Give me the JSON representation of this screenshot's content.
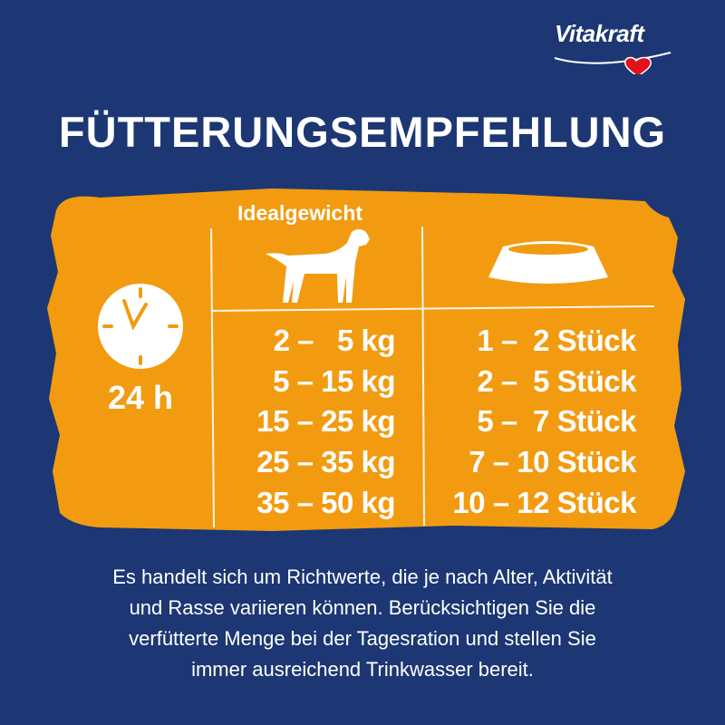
{
  "brand": {
    "logo_text": "Vitakraft",
    "colors": {
      "background": "#1c3773",
      "panel": "#f29b10",
      "heart": "#e3101e"
    }
  },
  "title": "FÜTTERUNGSEMPFEHLUNG",
  "time": {
    "icon": "clock-icon",
    "label": "24 h"
  },
  "table": {
    "weight_header": "Idealgewicht",
    "weight_icon": "dog-icon",
    "amount_icon": "bowl-icon",
    "rows": [
      {
        "weight": "2 –   5 kg",
        "amount": "1 –  2 Stück"
      },
      {
        "weight": "5 – 15 kg",
        "amount": "2 –  5 Stück"
      },
      {
        "weight": "15 – 25 kg",
        "amount": "5 –  7 Stück"
      },
      {
        "weight": "25 – 35 kg",
        "amount": "7 – 10 Stück"
      },
      {
        "weight": "35 – 50 kg",
        "amount": "10 – 12 Stück"
      }
    ]
  },
  "note": {
    "lines": [
      "Es handelt sich um Richtwerte, die je nach Alter, Aktivität",
      "und Rasse variieren können. Berücksichtigen Sie die",
      "verfütterte Menge bei der Tagesration und stellen Sie",
      "immer ausreichend Trinkwasser bereit."
    ]
  }
}
